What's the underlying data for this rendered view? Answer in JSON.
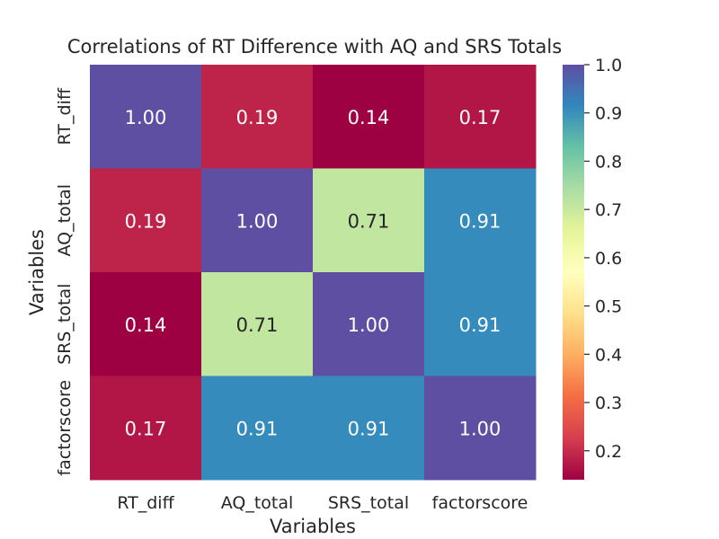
{
  "chart_data": {
    "type": "heatmap",
    "title": "Correlations of RT Difference with AQ and SRS Totals",
    "xlabel": "Variables",
    "ylabel": "Variables",
    "x_categories": [
      "RT_diff",
      "AQ_total",
      "SRS_total",
      "factorscore"
    ],
    "y_categories": [
      "RT_diff",
      "AQ_total",
      "SRS_total",
      "factorscore"
    ],
    "values": [
      [
        1.0,
        0.19,
        0.14,
        0.17
      ],
      [
        0.19,
        1.0,
        0.71,
        0.91
      ],
      [
        0.14,
        0.71,
        1.0,
        0.91
      ],
      [
        0.17,
        0.91,
        0.91,
        1.0
      ]
    ],
    "value_format": "2 decimals",
    "colormap": "Spectral",
    "color_range": [
      0.14,
      1.0
    ],
    "colorbar_ticks": [
      0.2,
      0.3,
      0.4,
      0.5,
      0.6,
      0.7,
      0.8,
      0.9,
      1.0
    ],
    "colorbar_tick_labels": [
      "0.2",
      "0.3",
      "0.4",
      "0.5",
      "0.6",
      "0.7",
      "0.8",
      "0.9",
      "1.0"
    ]
  }
}
